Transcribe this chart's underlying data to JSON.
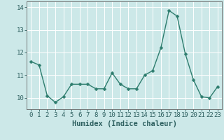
{
  "xlabel": "Humidex (Indice chaleur)",
  "x_values": [
    0,
    1,
    2,
    3,
    4,
    5,
    6,
    7,
    8,
    9,
    10,
    11,
    12,
    13,
    14,
    15,
    16,
    17,
    18,
    19,
    20,
    21,
    22,
    23
  ],
  "y_values": [
    11.6,
    11.45,
    10.1,
    9.8,
    10.05,
    10.6,
    10.6,
    10.6,
    10.4,
    10.4,
    11.1,
    10.6,
    10.4,
    10.4,
    11.0,
    11.2,
    12.2,
    13.85,
    13.6,
    11.95,
    10.8,
    10.05,
    10.0,
    10.5
  ],
  "line_color": "#2e7d6e",
  "marker_color": "#2e7d6e",
  "bg_color": "#cce8e8",
  "grid_color": "#ffffff",
  "axis_color": "#666666",
  "tick_color": "#2e6060",
  "xlabel_color": "#2e6060",
  "ylim_min": 9.5,
  "ylim_max": 14.25,
  "xlim_min": -0.5,
  "xlim_max": 23.5,
  "yticks": [
    10,
    11,
    12,
    13,
    14
  ],
  "xticks": [
    0,
    1,
    2,
    3,
    4,
    5,
    6,
    7,
    8,
    9,
    10,
    11,
    12,
    13,
    14,
    15,
    16,
    17,
    18,
    19,
    20,
    21,
    22,
    23
  ],
  "xlabel_fontsize": 7.5,
  "tick_fontsize": 6.5,
  "linewidth": 1.0,
  "markersize": 2.5
}
